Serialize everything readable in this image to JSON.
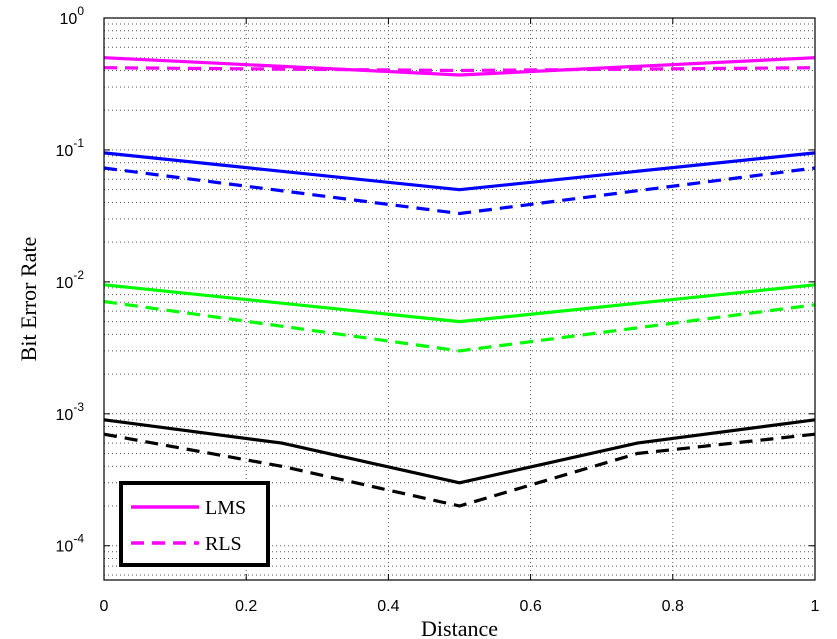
{
  "chart_data": {
    "type": "line",
    "xlabel": "Distance",
    "ylabel": "Bit Error Rate",
    "yscale": "log",
    "xlim": [
      0,
      1
    ],
    "ylim": [
      5.5e-05,
      1
    ],
    "grid": true,
    "x_ticks": [
      "0",
      "0.2",
      "0.4",
      "0.6",
      "0.8",
      "1"
    ],
    "y_ticks": [
      {
        "base": "10",
        "exp": "0"
      },
      {
        "base": "10",
        "exp": "-1"
      },
      {
        "base": "10",
        "exp": "-2"
      },
      {
        "base": "10",
        "exp": "-3"
      },
      {
        "base": "10",
        "exp": "-4"
      }
    ],
    "legend": {
      "position": "bottom-left",
      "entries": [
        {
          "label": "LMS",
          "color": "#ff00ff",
          "style": "solid"
        },
        {
          "label": "RLS",
          "color": "#ff00ff",
          "style": "dashed"
        }
      ]
    },
    "series": [
      {
        "name": "LMS (magenta)",
        "color": "#ff00ff",
        "style": "solid",
        "x": [
          0,
          0.5,
          1
        ],
        "values": [
          0.5,
          0.37,
          0.5
        ]
      },
      {
        "name": "RLS (magenta)",
        "color": "#ff00ff",
        "style": "dashed",
        "x": [
          0,
          0.5,
          1
        ],
        "values": [
          0.42,
          0.4,
          0.42
        ]
      },
      {
        "name": "LMS (blue)",
        "color": "#0000ff",
        "style": "solid",
        "x": [
          0,
          0.5,
          1
        ],
        "values": [
          0.095,
          0.05,
          0.095
        ]
      },
      {
        "name": "RLS (blue)",
        "color": "#0000ff",
        "style": "dashed",
        "x": [
          0,
          0.5,
          1
        ],
        "values": [
          0.073,
          0.033,
          0.073
        ]
      },
      {
        "name": "LMS (green)",
        "color": "#00ff00",
        "style": "solid",
        "x": [
          0,
          0.5,
          1
        ],
        "values": [
          0.0095,
          0.005,
          0.0095
        ]
      },
      {
        "name": "RLS (green)",
        "color": "#00ff00",
        "style": "dashed",
        "x": [
          0,
          0.5,
          1
        ],
        "values": [
          0.0071,
          0.003,
          0.0067
        ]
      },
      {
        "name": "LMS (black)",
        "color": "#000000",
        "style": "solid",
        "x": [
          0,
          0.25,
          0.5,
          0.75,
          1
        ],
        "values": [
          0.0009,
          0.0006,
          0.0003,
          0.0006,
          0.0009
        ]
      },
      {
        "name": "RLS (black)",
        "color": "#000000",
        "style": "dashed",
        "x": [
          0,
          0.25,
          0.5,
          0.75,
          1
        ],
        "values": [
          0.0007,
          0.0004,
          0.0002,
          0.0005,
          0.0007
        ]
      }
    ]
  }
}
